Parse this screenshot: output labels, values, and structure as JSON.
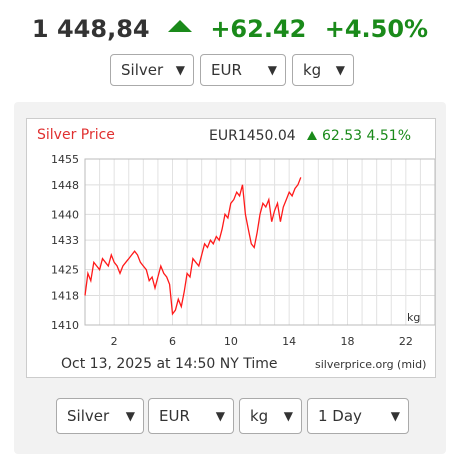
{
  "header": {
    "price": "1 448,84",
    "change": "+62.42",
    "change_pct": "+4.50%",
    "direction_icon": "up-triangle-icon",
    "up_color": "#1a8a1a"
  },
  "top_selects": {
    "metal": "Silver",
    "currency": "EUR",
    "unit": "kg"
  },
  "bottom_selects": {
    "metal": "Silver",
    "currency": "EUR",
    "unit": "kg",
    "range": "1 Day"
  },
  "chart_data": {
    "type": "line",
    "title": "Silver Price",
    "title_color": "#e03030",
    "price_label": "EUR1450.04",
    "change_label": "62.53 4.51%",
    "change_color": "#1a8a1a",
    "line_color": "#ff1a1a",
    "unit_label": "kg",
    "timestamp": "Oct 13, 2025 at 14:50 NY Time",
    "source": "silverprice.org (mid)",
    "x_ticks": [
      2,
      6,
      10,
      14,
      18,
      22
    ],
    "y_ticks": [
      "1455",
      "1448",
      "1440",
      "1433",
      "1425",
      "1418",
      "1410"
    ],
    "y_tick_values": [
      1455,
      1448,
      1440,
      1433,
      1425,
      1418,
      1410
    ],
    "xlim": [
      0,
      24
    ],
    "ylim": [
      1410,
      1455
    ],
    "grid": true,
    "x": [
      0.0,
      0.2,
      0.4,
      0.6,
      0.8,
      1.0,
      1.2,
      1.4,
      1.6,
      1.8,
      2.0,
      2.2,
      2.4,
      2.6,
      2.8,
      3.0,
      3.2,
      3.4,
      3.6,
      3.8,
      4.0,
      4.2,
      4.4,
      4.6,
      4.8,
      5.0,
      5.2,
      5.4,
      5.6,
      5.8,
      6.0,
      6.2,
      6.4,
      6.6,
      6.8,
      7.0,
      7.2,
      7.4,
      7.6,
      7.8,
      8.0,
      8.2,
      8.4,
      8.6,
      8.8,
      9.0,
      9.2,
      9.4,
      9.6,
      9.8,
      10.0,
      10.2,
      10.4,
      10.6,
      10.8,
      11.0,
      11.2,
      11.4,
      11.6,
      11.8,
      12.0,
      12.2,
      12.4,
      12.6,
      12.8,
      13.0,
      13.2,
      13.4,
      13.6,
      13.8,
      14.0,
      14.2,
      14.4,
      14.6,
      14.8
    ],
    "y": [
      1418,
      1424,
      1422,
      1427,
      1426,
      1425,
      1428,
      1427,
      1426,
      1429,
      1427,
      1426,
      1424,
      1426,
      1427,
      1428,
      1429,
      1430,
      1429,
      1427,
      1426,
      1425,
      1422,
      1423,
      1420,
      1423,
      1426,
      1424,
      1423,
      1421,
      1413,
      1414,
      1417,
      1415,
      1419,
      1424,
      1423,
      1428,
      1427,
      1426,
      1429,
      1432,
      1431,
      1433,
      1432,
      1434,
      1433,
      1436,
      1440,
      1439,
      1443,
      1444,
      1446,
      1445,
      1448,
      1440,
      1436,
      1432,
      1431,
      1435,
      1440,
      1443,
      1442,
      1444,
      1438,
      1441,
      1443,
      1438,
      1442,
      1444,
      1446,
      1445,
      1447,
      1448,
      1450
    ]
  }
}
